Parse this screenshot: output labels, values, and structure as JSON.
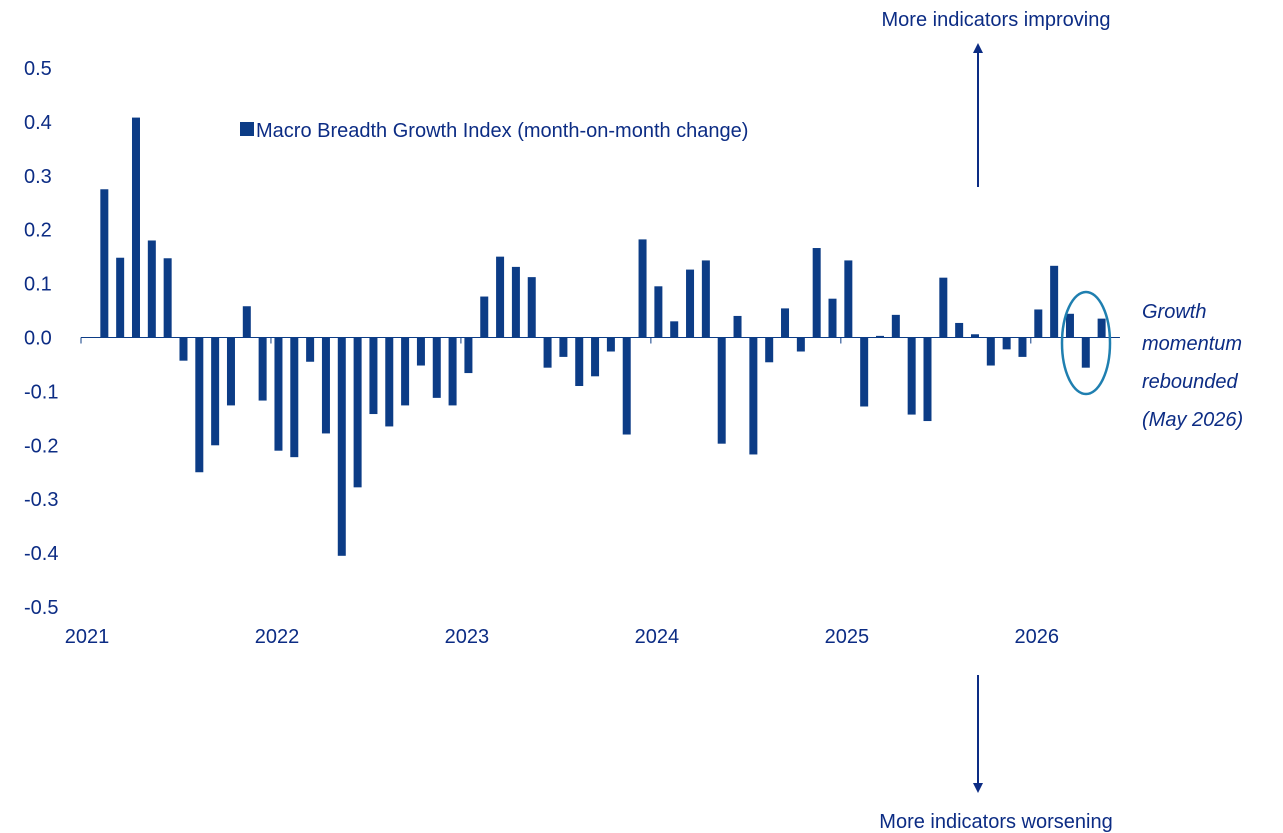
{
  "colors": {
    "bar": "#0c3c86",
    "axis": "#0c3c86",
    "text": "#0c2c84",
    "highlight_circle": "#1f7fb0"
  },
  "annotations": {
    "top_arrow_label": "More indicators improving",
    "bottom_arrow_label": "More indicators worsening",
    "note_lines": [
      "Growth",
      "momentum",
      "rebounded",
      "(May 2026)"
    ]
  },
  "chart_data": {
    "type": "bar",
    "legend": "Macro Breadth Growth Index (month-on-month change)",
    "legend_position": "top-left inside plot",
    "grid": false,
    "ylim": [
      -0.5,
      0.5
    ],
    "y_ticks": [
      "0.5",
      "0.4",
      "0.3",
      "0.2",
      "0.1",
      "0.0",
      "-0.1",
      "-0.2",
      "-0.3",
      "-0.4",
      "-0.5"
    ],
    "x_ticks": [
      "2021",
      "2022",
      "2023",
      "2024",
      "2025",
      "2026"
    ],
    "series": [
      {
        "name": "Macro Breadth Growth Index (month-on-month change)",
        "start": "2021-02",
        "frequency": "monthly",
        "values": [
          0.275,
          0.148,
          0.408,
          0.18,
          0.147,
          -0.043,
          -0.25,
          -0.2,
          -0.126,
          0.058,
          -0.117,
          -0.21,
          -0.222,
          -0.045,
          -0.178,
          -0.405,
          -0.278,
          -0.142,
          -0.165,
          -0.126,
          -0.052,
          -0.112,
          -0.126,
          -0.066,
          0.076,
          0.15,
          0.131,
          0.112,
          -0.056,
          -0.036,
          -0.09,
          -0.072,
          -0.026,
          -0.18,
          0.182,
          0.095,
          0.03,
          0.126,
          0.143,
          -0.197,
          0.04,
          -0.217,
          -0.046,
          0.054,
          -0.026,
          0.166,
          0.072,
          0.143,
          -0.128,
          0.003,
          0.042,
          -0.143,
          -0.155,
          0.111,
          0.027,
          0.006,
          -0.052,
          -0.022,
          -0.036,
          0.052,
          0.133,
          0.044,
          -0.056,
          0.035
        ]
      }
    ],
    "highlight": "May 2026"
  }
}
